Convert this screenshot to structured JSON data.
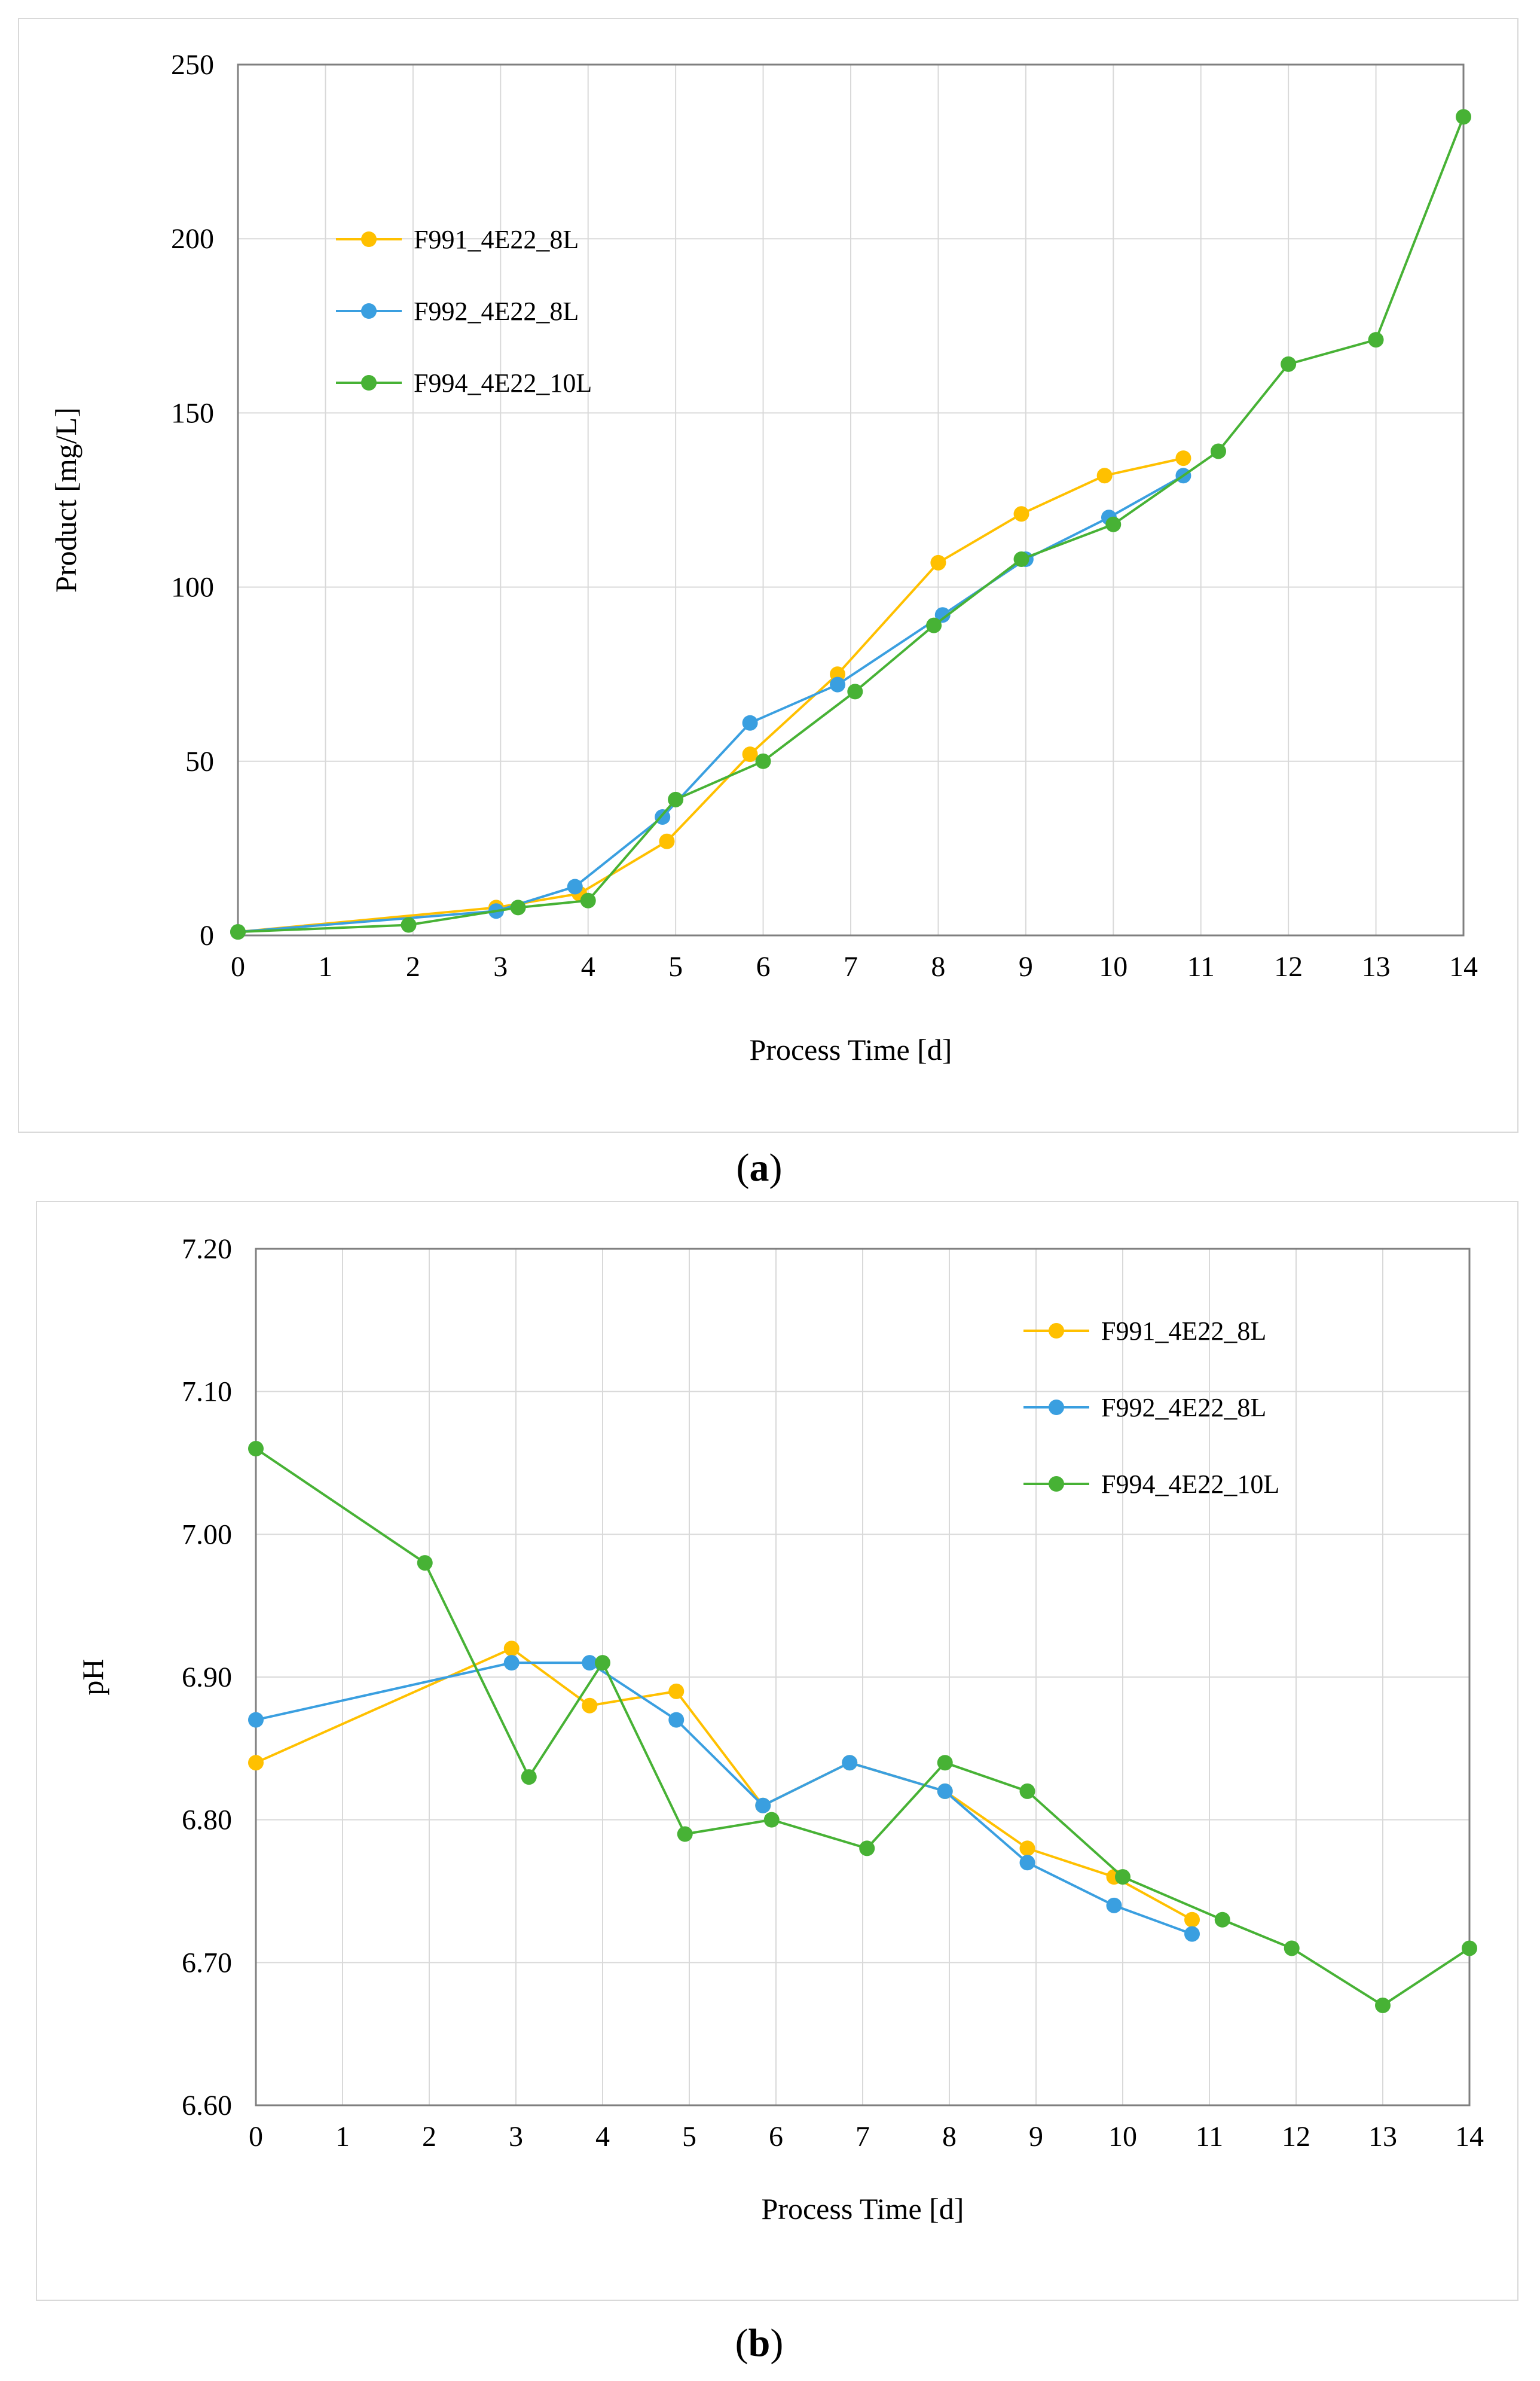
{
  "charts": [
    {
      "panel_label_prefix": "(",
      "panel_label_letter": "a",
      "panel_label_suffix": ")"
    },
    {
      "panel_label_prefix": "(",
      "panel_label_letter": "b",
      "panel_label_suffix": ")"
    }
  ],
  "colors": {
    "F991": "#FFC000",
    "F992": "#3A9FE0",
    "F994": "#47B235",
    "grid": "#d9d9d9",
    "axis": "#7f7f7f"
  },
  "chart_data": [
    {
      "type": "line",
      "title": "",
      "xlabel": "Process Time  [d]",
      "ylabel": "Product  [mg/L]",
      "xlim": [
        0,
        14
      ],
      "ylim": [
        0,
        250
      ],
      "xticks": [
        0,
        1,
        2,
        3,
        4,
        5,
        6,
        7,
        8,
        9,
        10,
        11,
        12,
        13,
        14
      ],
      "yticks": [
        0,
        50,
        100,
        150,
        200,
        250
      ],
      "ytick_labels": [
        "0",
        "50",
        "100",
        "150",
        "200",
        "250"
      ],
      "legend_position": "upper-left",
      "series": [
        {
          "name": "F991_4E22_8L",
          "color": "#FFC000",
          "x": [
            0,
            2.95,
            3.9,
            4.9,
            5.85,
            6.85,
            8.0,
            8.95,
            9.9,
            10.8
          ],
          "y": [
            1,
            8,
            12,
            27,
            52,
            75,
            107,
            121,
            132,
            137
          ]
        },
        {
          "name": "F992_4E22_8L",
          "color": "#3A9FE0",
          "x": [
            0,
            2.95,
            3.85,
            4.85,
            5.85,
            6.85,
            8.05,
            9.0,
            9.95,
            10.8
          ],
          "y": [
            1,
            7,
            14,
            34,
            61,
            72,
            92,
            108,
            120,
            132
          ]
        },
        {
          "name": "F994_4E22_10L",
          "color": "#47B235",
          "x": [
            0,
            1.95,
            3.2,
            4.0,
            5.0,
            6.0,
            7.05,
            7.95,
            8.95,
            10.0,
            11.2,
            12.0,
            13.0,
            14.0
          ],
          "y": [
            1,
            3,
            8,
            10,
            39,
            50,
            70,
            89,
            108,
            118,
            139,
            164,
            171,
            235
          ]
        }
      ]
    },
    {
      "type": "line",
      "title": "",
      "xlabel": "Process Time  [d]",
      "ylabel": "pH",
      "xlim": [
        0,
        14
      ],
      "ylim": [
        6.6,
        7.2
      ],
      "xticks": [
        0,
        1,
        2,
        3,
        4,
        5,
        6,
        7,
        8,
        9,
        10,
        11,
        12,
        13,
        14
      ],
      "yticks": [
        6.6,
        6.7,
        6.8,
        6.9,
        7.0,
        7.1,
        7.2
      ],
      "ytick_labels": [
        "6.60",
        "6.70",
        "6.80",
        "6.90",
        "7.00",
        "7.10",
        "7.20"
      ],
      "legend_position": "upper-right",
      "series": [
        {
          "name": "F991_4E22_8L",
          "color": "#FFC000",
          "x": [
            0,
            2.95,
            3.85,
            4.85,
            5.85,
            6.85,
            7.95,
            8.9,
            9.9,
            10.8
          ],
          "y": [
            6.84,
            6.92,
            6.88,
            6.89,
            6.81,
            6.84,
            6.82,
            6.78,
            6.76,
            6.73
          ]
        },
        {
          "name": "F992_4E22_8L",
          "color": "#3A9FE0",
          "x": [
            0,
            2.95,
            3.85,
            4.85,
            5.85,
            6.85,
            7.95,
            8.9,
            9.9,
            10.8
          ],
          "y": [
            6.87,
            6.91,
            6.91,
            6.87,
            6.81,
            6.84,
            6.82,
            6.77,
            6.74,
            6.72
          ]
        },
        {
          "name": "F994_4E22_10L",
          "color": "#47B235",
          "x": [
            0,
            1.95,
            3.15,
            4.0,
            4.95,
            5.95,
            7.05,
            7.95,
            8.9,
            10.0,
            11.15,
            11.95,
            13.0,
            14.0
          ],
          "y": [
            7.06,
            6.98,
            6.83,
            6.91,
            6.79,
            6.8,
            6.78,
            6.84,
            6.82,
            6.76,
            6.73,
            6.71,
            6.67,
            6.71
          ]
        }
      ]
    }
  ]
}
